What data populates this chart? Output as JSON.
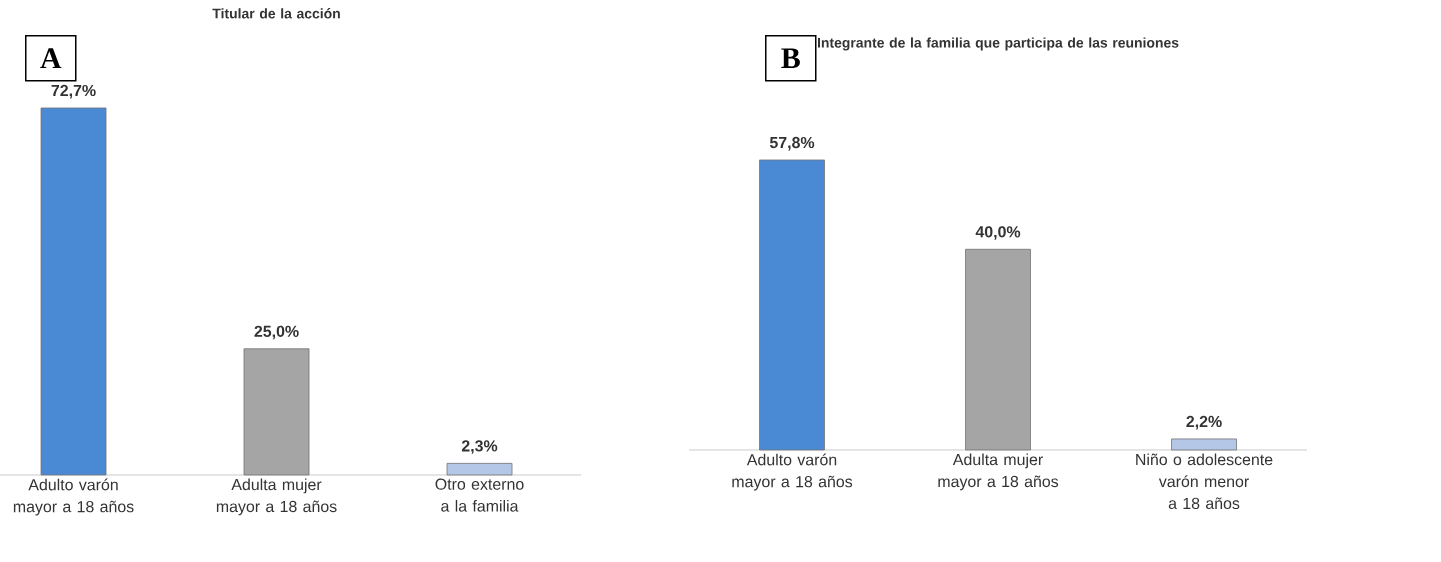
{
  "chart_data": [
    {
      "type": "bar",
      "title": "Titular de la acción",
      "annotations": [
        "A"
      ],
      "categories": [
        "Adulto varón mayor a 18 años",
        "Adulta mujer mayor a 18 años",
        "Otro externo a la familia"
      ],
      "values": [
        72.7,
        25.0,
        2.3
      ],
      "value_labels": [
        "72,7%",
        "25,0%",
        "2,3%"
      ],
      "colors": [
        "#4a8ad4",
        "#a5a5a5",
        "#b4c7e7"
      ]
    },
    {
      "type": "bar",
      "title": "Integrante de la familia que participa de las reuniones",
      "annotations": [
        "B"
      ],
      "categories": [
        "Adulto varón mayor a 18 años",
        "Adulta mujer mayor a 18 años",
        "Niño o adolescente varón menor a 18 años"
      ],
      "values": [
        57.8,
        40.0,
        2.2
      ],
      "value_labels": [
        "57,8%",
        "40,0%",
        "2,2%"
      ],
      "colors": [
        "#4a8ad4",
        "#a5a5a5",
        "#b4c7e7"
      ]
    }
  ]
}
